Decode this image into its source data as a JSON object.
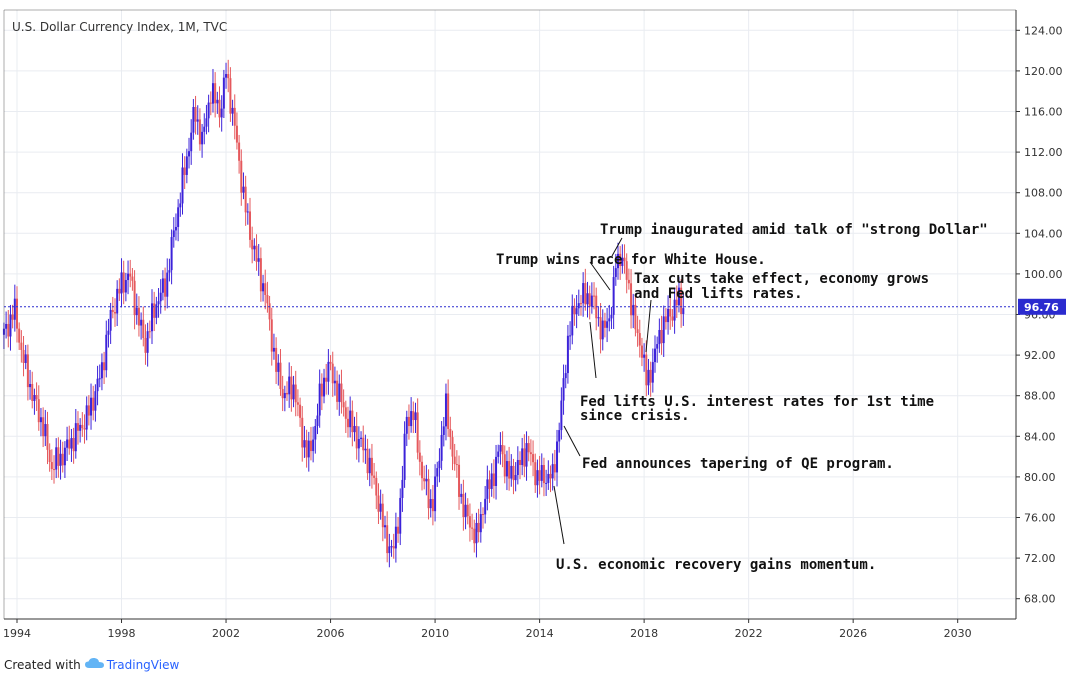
{
  "chart_data": {
    "type": "candlestick",
    "title": "U.S. Dollar Currency Index, 1M, TVC",
    "ylim": [
      66,
      126
    ],
    "y_ticks": [
      "124.00",
      "120.00",
      "116.00",
      "112.00",
      "108.00",
      "104.00",
      "100.00",
      "96.00",
      "92.00",
      "88.00",
      "84.00",
      "80.00",
      "76.00",
      "72.00",
      "68.00"
    ],
    "x_ticks": [
      "1994",
      "1998",
      "2002",
      "2006",
      "2010",
      "2014",
      "2018",
      "2022",
      "2026",
      "2030"
    ],
    "last_value": "96.76",
    "colors": {
      "up": "#3b22d9",
      "down": "#e5585c",
      "last": "#2b2bcf"
    },
    "points": [
      [
        1993.5,
        94
      ],
      [
        1993.9,
        96.5
      ],
      [
        1994.2,
        92
      ],
      [
        1994.6,
        88
      ],
      [
        1995.0,
        85
      ],
      [
        1995.3,
        81
      ],
      [
        1995.7,
        82
      ],
      [
        1996.2,
        84
      ],
      [
        1996.7,
        86
      ],
      [
        1997.2,
        90
      ],
      [
        1997.6,
        96
      ],
      [
        1998.0,
        99
      ],
      [
        1998.3,
        100
      ],
      [
        1998.6,
        96
      ],
      [
        1998.9,
        93
      ],
      [
        1999.3,
        97
      ],
      [
        1999.7,
        99
      ],
      [
        2000.0,
        104
      ],
      [
        2000.4,
        110
      ],
      [
        2000.8,
        116
      ],
      [
        2001.1,
        113
      ],
      [
        2001.4,
        118
      ],
      [
        2001.8,
        116
      ],
      [
        2002.0,
        120
      ],
      [
        2002.3,
        115
      ],
      [
        2002.7,
        107
      ],
      [
        2003.0,
        103
      ],
      [
        2003.5,
        98
      ],
      [
        2003.9,
        91
      ],
      [
        2004.2,
        88
      ],
      [
        2004.6,
        89
      ],
      [
        2004.9,
        84
      ],
      [
        2005.2,
        82
      ],
      [
        2005.6,
        88
      ],
      [
        2005.9,
        91
      ],
      [
        2006.2,
        89
      ],
      [
        2006.6,
        86
      ],
      [
        2007.0,
        84
      ],
      [
        2007.4,
        82
      ],
      [
        2007.8,
        78
      ],
      [
        2008.1,
        74
      ],
      [
        2008.4,
        72.5
      ],
      [
        2008.7,
        78
      ],
      [
        2008.9,
        86
      ],
      [
        2009.2,
        86
      ],
      [
        2009.5,
        80
      ],
      [
        2009.9,
        77
      ],
      [
        2010.1,
        81
      ],
      [
        2010.4,
        87
      ],
      [
        2010.7,
        82
      ],
      [
        2010.9,
        79
      ],
      [
        2011.2,
        76
      ],
      [
        2011.6,
        74
      ],
      [
        2011.9,
        78
      ],
      [
        2012.2,
        80
      ],
      [
        2012.5,
        83
      ],
      [
        2012.8,
        80
      ],
      [
        2013.2,
        81
      ],
      [
        2013.5,
        83
      ],
      [
        2013.9,
        80
      ],
      [
        2014.2,
        80
      ],
      [
        2014.5,
        80
      ],
      [
        2014.8,
        86
      ],
      [
        2015.1,
        94
      ],
      [
        2015.4,
        97
      ],
      [
        2015.8,
        98
      ],
      [
        2016.1,
        97
      ],
      [
        2016.4,
        94
      ],
      [
        2016.8,
        97
      ],
      [
        2016.9,
        101
      ],
      [
        2017.1,
        102
      ],
      [
        2017.4,
        99
      ],
      [
        2017.7,
        94
      ],
      [
        2017.9,
        93
      ],
      [
        2018.1,
        89
      ],
      [
        2018.4,
        92
      ],
      [
        2018.7,
        95
      ],
      [
        2019.0,
        96
      ],
      [
        2019.3,
        97.5
      ],
      [
        2019.5,
        96.8
      ]
    ],
    "annotations": [
      {
        "lines": [
          "Trump inaugurated amid talk of \"strong Dollar\""
        ]
      },
      {
        "lines": [
          "Trump wins race for White House."
        ]
      },
      {
        "lines": [
          "Tax cuts take effect, economy grows",
          "and Fed lifts rates."
        ]
      },
      {
        "lines": [
          "Fed lifts U.S. interest rates for 1st time",
          "since crisis."
        ]
      },
      {
        "lines": [
          "Fed announces tapering of QE program."
        ]
      },
      {
        "lines": [
          "U.S. economic recovery gains momentum."
        ]
      }
    ]
  },
  "footer": {
    "created_with": "Created with",
    "brand": "TradingView",
    "logo_icon": "tradingview-cloud-icon"
  }
}
